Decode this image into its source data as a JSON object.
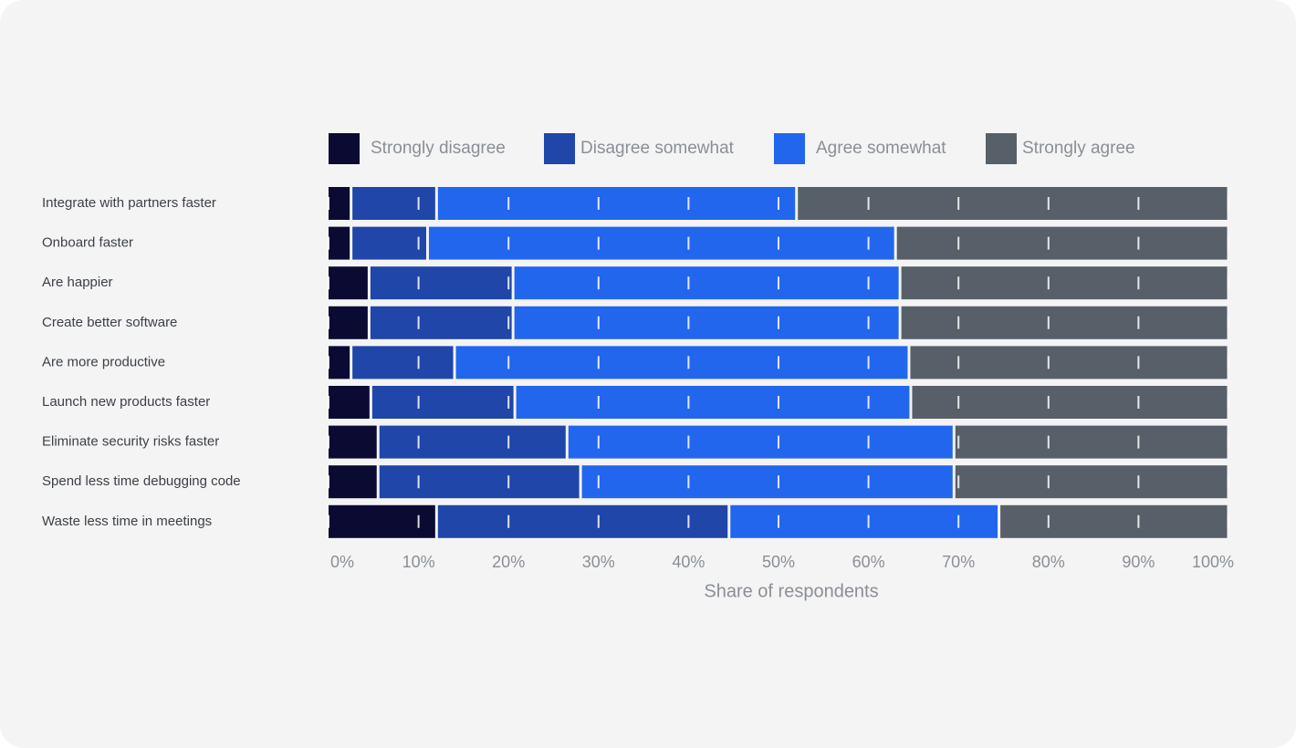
{
  "chart_data": {
    "type": "stacked-bar-horizontal",
    "categories": [
      "Integrate with partners faster",
      "Onboard faster",
      "Are happier",
      "Create better software",
      "Are more productive",
      "Launch new products faster",
      "Eliminate security risks faster",
      "Spend less time debugging code",
      "Waste less time in meetings"
    ],
    "series": [
      {
        "name": "Strongly disagree",
        "color": "#0b0a33",
        "values": [
          2.5,
          2.5,
          4.5,
          4.5,
          2.5,
          4.7,
          5.5,
          5.5,
          12
        ]
      },
      {
        "name": "Disagree somewhat",
        "color": "#1f46a8",
        "values": [
          9.5,
          8.5,
          16,
          16,
          11.5,
          16,
          21,
          22.5,
          32.5
        ]
      },
      {
        "name": "Agree somewhat",
        "color": "#2266ee",
        "values": [
          40,
          52,
          43,
          43,
          50.5,
          44,
          43,
          41.5,
          30
        ]
      },
      {
        "name": "Strongly agree",
        "color": "#575f68",
        "values": [
          48,
          37,
          36.5,
          36.5,
          35.5,
          35.3,
          30.5,
          30.5,
          25.5
        ]
      }
    ],
    "xlabel": "Share of respondents",
    "xlim": [
      0,
      100
    ],
    "xticks": [
      {
        "value": 0,
        "label": "0%"
      },
      {
        "value": 10,
        "label": "10%"
      },
      {
        "value": 20,
        "label": "20%"
      },
      {
        "value": 30,
        "label": "30%"
      },
      {
        "value": 40,
        "label": "40%"
      },
      {
        "value": 50,
        "label": "50%"
      },
      {
        "value": 60,
        "label": "60%"
      },
      {
        "value": 70,
        "label": "70%"
      },
      {
        "value": 80,
        "label": "80%"
      },
      {
        "value": 90,
        "label": "90%"
      },
      {
        "value": 100,
        "label": "100%"
      }
    ],
    "grid": true,
    "legend": "top"
  }
}
